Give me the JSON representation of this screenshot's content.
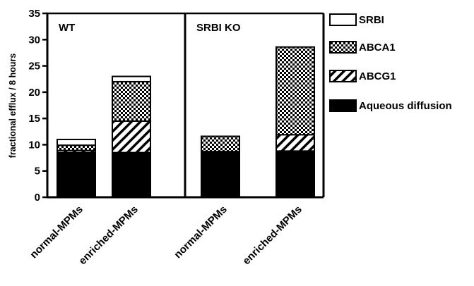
{
  "chart_data": {
    "type": "bar",
    "stacked": true,
    "ylabel": "fractional efflux / 8 hours",
    "ylim": [
      0,
      35
    ],
    "yticks": [
      0,
      5,
      10,
      15,
      20,
      25,
      30,
      35
    ],
    "panels": [
      "WT",
      "SRBI KO"
    ],
    "categories": [
      "normal-MPMs",
      "enriched-MPMs",
      "normal-MPMs",
      "enriched-MPMs"
    ],
    "bar_panel": [
      0,
      0,
      1,
      1
    ],
    "series": [
      {
        "name": "Aqueous diffusion",
        "pattern": "solid",
        "values": [
          8.5,
          8.5,
          8.7,
          8.8
        ]
      },
      {
        "name": "ABCG1",
        "pattern": "hatch",
        "values": [
          0.4,
          6.0,
          0.0,
          3.1
        ]
      },
      {
        "name": "ABCA1",
        "pattern": "checker",
        "values": [
          1.0,
          7.5,
          2.9,
          16.7
        ]
      },
      {
        "name": "SRBI",
        "pattern": "empty",
        "values": [
          1.1,
          1.0,
          0.0,
          0.0
        ]
      }
    ],
    "legend_order": [
      "SRBI",
      "ABCA1",
      "ABCG1",
      "Aqueous diffusion"
    ],
    "legend_placement": "right",
    "grid": false
  }
}
